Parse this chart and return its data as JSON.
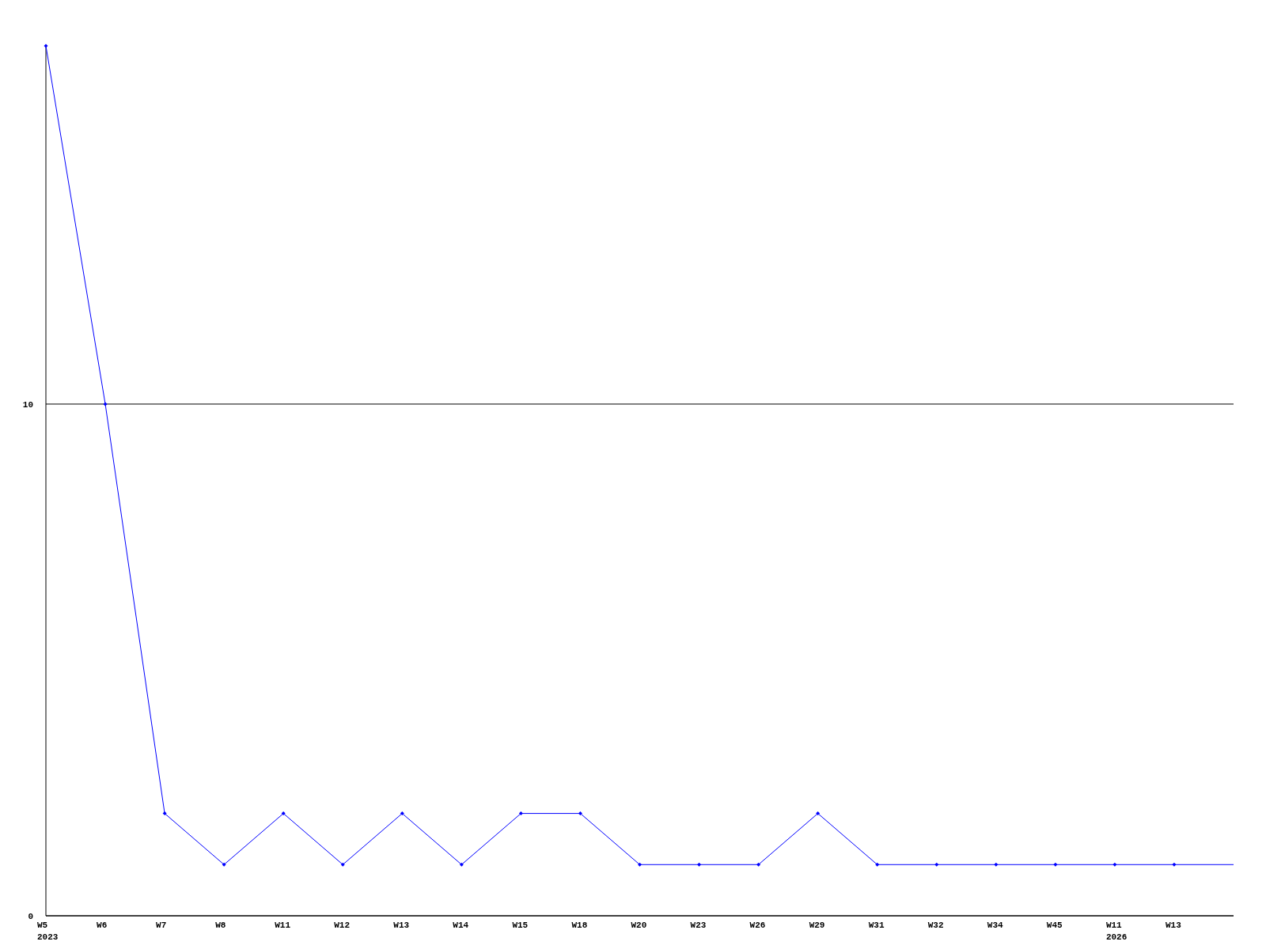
{
  "chart_data": {
    "type": "line",
    "categories": [
      "W5\n2023",
      "W6",
      "W7",
      "W8",
      "W11",
      "W12",
      "W13",
      "W14",
      "W15",
      "W18",
      "W20",
      "W23",
      "W26",
      "W29",
      "W31",
      "W32",
      "W34",
      "W45",
      "W11\n2026",
      "W13",
      null
    ],
    "series": [
      {
        "color": "#0000ff",
        "values": [
          17,
          10,
          2,
          1,
          2,
          1,
          2,
          1,
          2,
          2,
          1,
          1,
          1,
          2,
          1,
          1,
          1,
          1,
          1,
          1,
          1
        ]
      }
    ],
    "ylim": [
      0,
      17
    ],
    "yticks": [
      0,
      10
    ],
    "grid": "y",
    "marker": "diamond",
    "line_style": "solid"
  }
}
